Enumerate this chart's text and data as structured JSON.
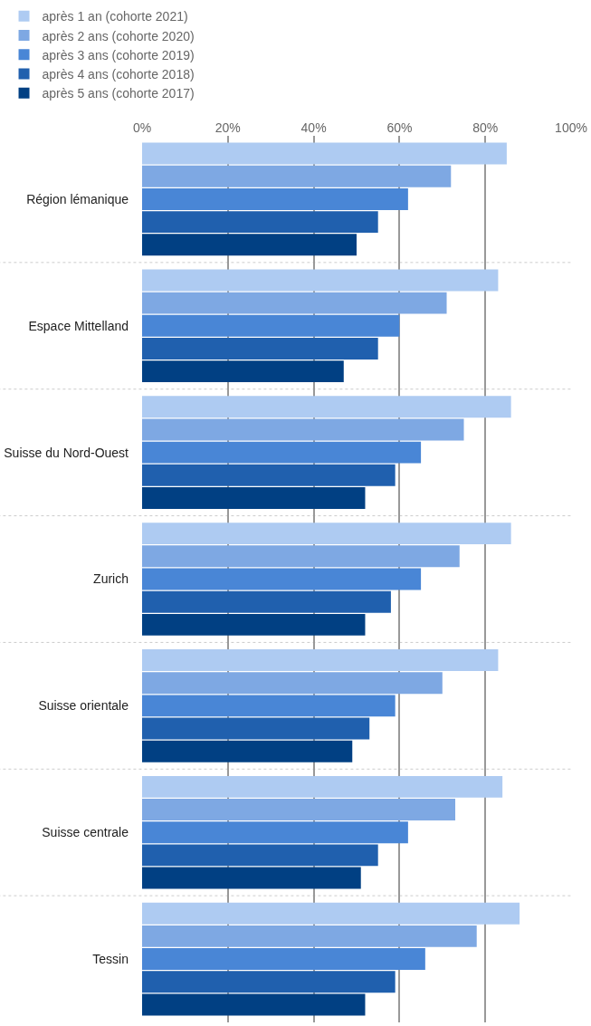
{
  "chart_data": {
    "type": "bar",
    "orientation": "horizontal",
    "categories": [
      "Région lémanique",
      "Espace Mittelland",
      "Suisse du Nord-Ouest",
      "Zurich",
      "Suisse orientale",
      "Suisse centrale",
      "Tessin"
    ],
    "series": [
      {
        "name": "après 1 an (cohorte 2021)",
        "color": "#aecbf2",
        "values": [
          85,
          83,
          86,
          86,
          83,
          84,
          88
        ]
      },
      {
        "name": "après 2 ans (cohorte 2020)",
        "color": "#7ea8e3",
        "values": [
          72,
          71,
          75,
          74,
          70,
          73,
          78
        ]
      },
      {
        "name": "après 3 ans (cohorte 2019)",
        "color": "#4986d6",
        "values": [
          62,
          60,
          65,
          65,
          59,
          62,
          66
        ]
      },
      {
        "name": "après 4 ans (cohorte 2018)",
        "color": "#2060ae",
        "values": [
          55,
          55,
          59,
          58,
          53,
          55,
          59
        ]
      },
      {
        "name": "après 5 ans (cohorte 2017)",
        "color": "#014083",
        "values": [
          50,
          47,
          52,
          52,
          49,
          51,
          52
        ]
      }
    ],
    "xlim": [
      0,
      100
    ],
    "xticks": [
      {
        "value": 0,
        "label": "0%"
      },
      {
        "value": 20,
        "label": "20%"
      },
      {
        "value": 40,
        "label": "40%"
      },
      {
        "value": 60,
        "label": "60%"
      },
      {
        "value": 80,
        "label": "80%"
      },
      {
        "value": 100,
        "label": "100%"
      }
    ],
    "grid": "x",
    "legend": "top"
  }
}
